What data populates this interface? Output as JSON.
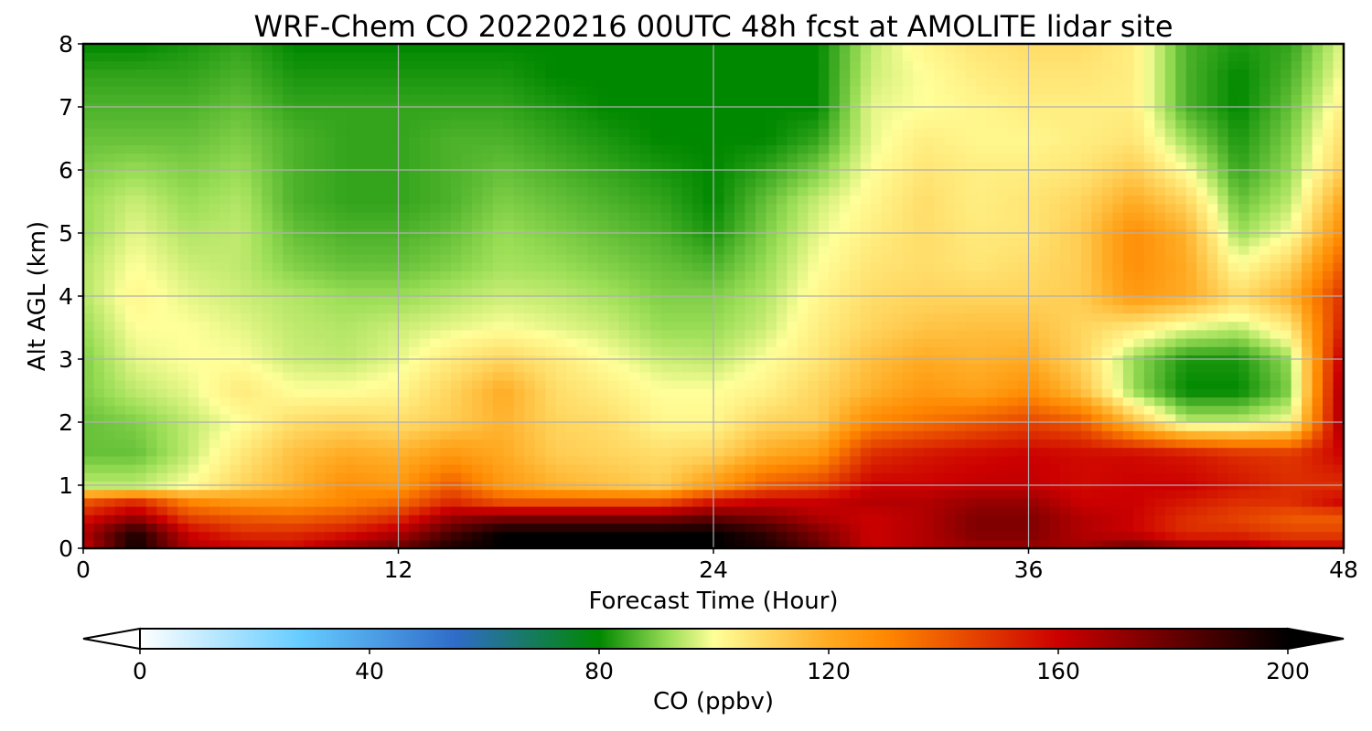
{
  "chart_data": {
    "type": "heatmap",
    "title": "WRF-Chem CO  20220216 00UTC 48h fcst at AMOLITE lidar site",
    "xlabel": "Forecast Time (Hour)",
    "ylabel": "Alt AGL (km)",
    "xlim": [
      0,
      48
    ],
    "ylim": [
      0,
      8
    ],
    "xticks": [
      0,
      12,
      24,
      36,
      48
    ],
    "yticks": [
      0,
      1,
      2,
      3,
      4,
      5,
      6,
      7,
      8
    ],
    "grid": true,
    "colorbar": {
      "label": "CO  (ppbv)",
      "range": [
        0,
        200
      ],
      "ticks": [
        0,
        40,
        80,
        120,
        160,
        200
      ],
      "extend": "both",
      "orientation": "horizontal",
      "colors": [
        "#ffffff",
        "#66ccff",
        "#2f6cc8",
        "#008800",
        "#99dd55",
        "#ffff99",
        "#ffaa22",
        "#ff8800",
        "#cc0000",
        "#000000"
      ],
      "color_stops": [
        0,
        28,
        55,
        80,
        92,
        100,
        120,
        130,
        160,
        200
      ]
    },
    "x": [
      0,
      2,
      4,
      6,
      8,
      10,
      12,
      14,
      16,
      18,
      20,
      22,
      24,
      26,
      28,
      30,
      32,
      34,
      36,
      38,
      40,
      42,
      44,
      46,
      48
    ],
    "y": [
      0,
      0.25,
      0.5,
      0.75,
      1,
      1.5,
      2,
      2.5,
      3,
      3.5,
      4,
      4.5,
      5,
      5.5,
      6,
      6.5,
      7,
      7.5,
      8
    ],
    "z": [
      [
        160,
        198,
        165,
        160,
        158,
        170,
        180,
        195,
        200,
        200,
        200,
        200,
        200,
        195,
        180,
        160,
        165,
        170,
        170,
        168,
        180,
        170,
        168,
        160,
        160
      ],
      [
        165,
        195,
        160,
        150,
        150,
        155,
        165,
        185,
        200,
        200,
        200,
        200,
        200,
        190,
        175,
        160,
        165,
        175,
        175,
        165,
        160,
        150,
        150,
        145,
        145
      ],
      [
        155,
        170,
        145,
        140,
        138,
        142,
        150,
        170,
        175,
        175,
        175,
        175,
        180,
        175,
        165,
        160,
        165,
        175,
        175,
        165,
        160,
        150,
        145,
        140,
        140
      ],
      [
        140,
        150,
        130,
        125,
        125,
        130,
        135,
        150,
        140,
        140,
        140,
        140,
        155,
        160,
        160,
        165,
        165,
        170,
        170,
        160,
        160,
        155,
        150,
        150,
        160
      ],
      [
        95,
        95,
        100,
        110,
        118,
        128,
        125,
        140,
        125,
        118,
        115,
        112,
        125,
        140,
        145,
        160,
        160,
        162,
        162,
        158,
        160,
        160,
        155,
        150,
        150
      ],
      [
        88,
        88,
        95,
        105,
        115,
        120,
        118,
        125,
        120,
        112,
        110,
        108,
        110,
        120,
        125,
        150,
        155,
        158,
        160,
        158,
        158,
        155,
        150,
        148,
        160
      ],
      [
        88,
        90,
        95,
        100,
        108,
        110,
        108,
        112,
        118,
        110,
        108,
        102,
        102,
        110,
        112,
        130,
        135,
        140,
        145,
        140,
        115,
        95,
        95,
        100,
        170
      ],
      [
        90,
        95,
        98,
        105,
        100,
        100,
        102,
        110,
        120,
        108,
        104,
        100,
        100,
        103,
        110,
        118,
        125,
        122,
        128,
        115,
        92,
        80,
        80,
        90,
        170
      ],
      [
        90,
        98,
        100,
        100,
        96,
        95,
        98,
        105,
        110,
        105,
        100,
        96,
        95,
        100,
        106,
        115,
        120,
        118,
        120,
        110,
        92,
        82,
        82,
        92,
        165
      ],
      [
        92,
        100,
        100,
        98,
        95,
        94,
        96,
        98,
        100,
        98,
        96,
        92,
        92,
        96,
        104,
        110,
        114,
        115,
        115,
        110,
        105,
        98,
        95,
        105,
        155
      ],
      [
        94,
        102,
        98,
        96,
        94,
        92,
        92,
        94,
        96,
        95,
        93,
        90,
        90,
        94,
        102,
        108,
        110,
        110,
        110,
        112,
        125,
        120,
        108,
        118,
        150
      ],
      [
        94,
        100,
        96,
        95,
        90,
        88,
        88,
        90,
        93,
        92,
        90,
        88,
        86,
        92,
        100,
        106,
        108,
        106,
        108,
        112,
        128,
        120,
        100,
        110,
        140
      ],
      [
        92,
        98,
        94,
        95,
        88,
        86,
        86,
        88,
        92,
        90,
        88,
        86,
        82,
        90,
        98,
        104,
        108,
        105,
        106,
        112,
        128,
        118,
        92,
        100,
        130
      ],
      [
        92,
        96,
        92,
        94,
        86,
        84,
        84,
        86,
        90,
        88,
        86,
        84,
        80,
        88,
        96,
        102,
        108,
        104,
        106,
        110,
        120,
        110,
        88,
        95,
        122
      ],
      [
        90,
        92,
        90,
        92,
        86,
        84,
        84,
        86,
        88,
        86,
        84,
        82,
        80,
        84,
        90,
        100,
        106,
        104,
        104,
        106,
        112,
        100,
        84,
        92,
        112
      ],
      [
        88,
        88,
        88,
        90,
        86,
        84,
        84,
        86,
        86,
        84,
        82,
        80,
        80,
        80,
        84,
        98,
        104,
        102,
        102,
        104,
        106,
        92,
        82,
        90,
        108
      ],
      [
        86,
        86,
        86,
        88,
        84,
        84,
        84,
        84,
        84,
        82,
        80,
        80,
        80,
        80,
        80,
        98,
        100,
        102,
        104,
        104,
        104,
        86,
        80,
        88,
        104
      ],
      [
        84,
        84,
        84,
        86,
        82,
        82,
        82,
        82,
        82,
        80,
        80,
        80,
        80,
        80,
        80,
        96,
        100,
        104,
        106,
        106,
        104,
        86,
        80,
        86,
        100
      ],
      [
        80,
        80,
        82,
        84,
        80,
        80,
        80,
        80,
        80,
        80,
        80,
        80,
        80,
        80,
        80,
        95,
        102,
        106,
        108,
        108,
        104,
        86,
        82,
        84,
        98
      ]
    ]
  }
}
